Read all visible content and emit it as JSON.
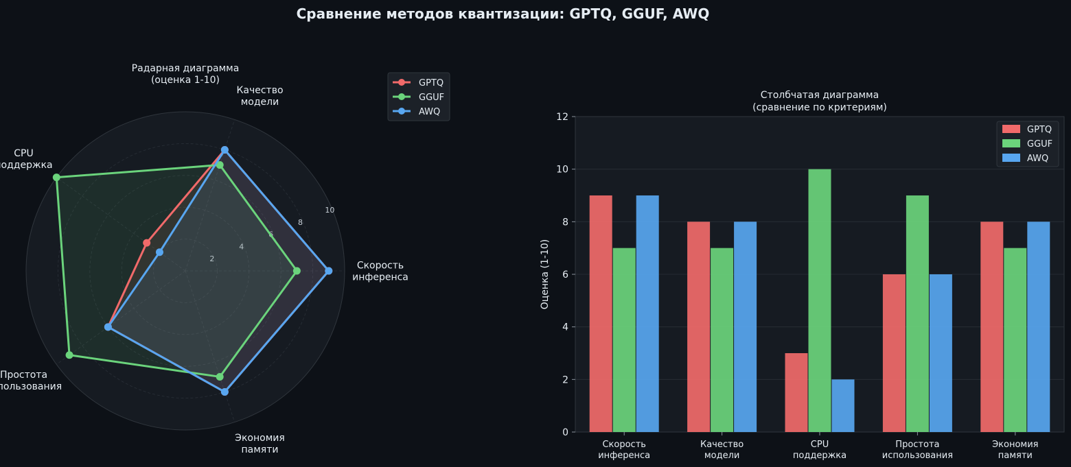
{
  "title": "Сравнение методов квантизации: GPTQ, GGUF, AWQ",
  "colors": {
    "GPTQ": "#f16a6a",
    "GGUF": "#6bd47c",
    "AWQ": "#58a6f0",
    "background": "#0d1117",
    "panel": "#161b22",
    "text": "#e6edf3"
  },
  "chart_data": [
    {
      "type": "radar",
      "title": "Радарная диаграмма",
      "subtitle": "(оценка 1-10)",
      "axes": [
        "Скорость инференса",
        "Качество модели",
        "CPU поддержка",
        "Простота использования",
        "Экономия памяти"
      ],
      "axes_lines": [
        [
          "Скорость",
          "инференса"
        ],
        [
          "Качество",
          "модели"
        ],
        [
          "CPU",
          "поддержка"
        ],
        [
          "Простота",
          "использования"
        ],
        [
          "Экономия",
          "памяти"
        ]
      ],
      "rlim": [
        0,
        10
      ],
      "rticks": [
        "2",
        "4",
        "6",
        "8",
        "10"
      ],
      "grid": true,
      "legend_position": "top-right",
      "series": [
        {
          "name": "GPTQ",
          "values": [
            9,
            8,
            3,
            6,
            8
          ]
        },
        {
          "name": "GGUF",
          "values": [
            7,
            7,
            10,
            9,
            7
          ]
        },
        {
          "name": "AWQ",
          "values": [
            9,
            8,
            2,
            6,
            8
          ]
        }
      ]
    },
    {
      "type": "bar",
      "title": "Столбчатая диаграмма",
      "subtitle": "(сравнение по критериям)",
      "categories": [
        "Скорость инференса",
        "Качество модели",
        "CPU поддержка",
        "Простота использования",
        "Экономия памяти"
      ],
      "categories_lines": [
        [
          "Скорость",
          "инференса"
        ],
        [
          "Качество",
          "модели"
        ],
        [
          "CPU",
          "поддержка"
        ],
        [
          "Простота",
          "использования"
        ],
        [
          "Экономия",
          "памяти"
        ]
      ],
      "ylabel": "Оценка (1-10)",
      "ylim": [
        0,
        12
      ],
      "yticks": [
        "0",
        "2",
        "4",
        "6",
        "8",
        "10",
        "12"
      ],
      "grid": true,
      "legend_position": "top-right",
      "series": [
        {
          "name": "GPTQ",
          "values": [
            9,
            8,
            3,
            6,
            8
          ]
        },
        {
          "name": "GGUF",
          "values": [
            7,
            7,
            10,
            9,
            7
          ]
        },
        {
          "name": "AWQ",
          "values": [
            9,
            8,
            2,
            6,
            8
          ]
        }
      ]
    }
  ]
}
